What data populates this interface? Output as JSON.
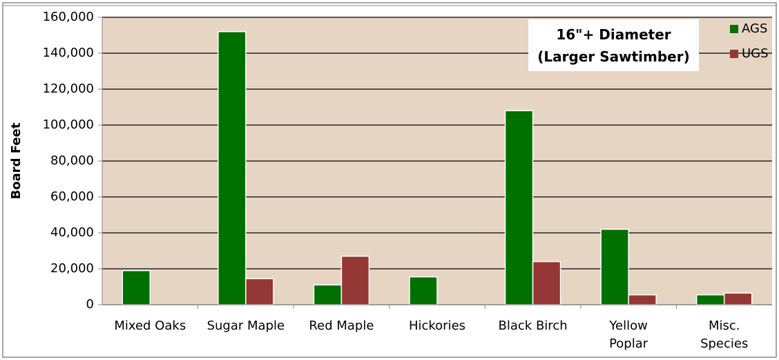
{
  "chart_data": {
    "type": "bar",
    "annotation": "16\"+ Diameter\n(Larger Sawtimber)",
    "y_label": "Board Feet",
    "categories": [
      "Mixed Oaks",
      "Sugar Maple",
      "Red Maple",
      "Hickories",
      "Black Birch",
      "Yellow\nPoplar",
      "Misc.\nSpecies"
    ],
    "series": [
      {
        "name": "AGS",
        "color": "#007000",
        "values": [
          19000,
          152000,
          11000,
          15500,
          108000,
          42000,
          5500
        ]
      },
      {
        "name": "UGS",
        "color": "#953735",
        "values": [
          0,
          14500,
          27000,
          0,
          24000,
          5500,
          6500
        ]
      }
    ],
    "ylim": [
      0,
      160000
    ],
    "yticks": [
      0,
      {
        "value": 20000,
        "label": "20,000"
      },
      {
        "value": 40000,
        "label": "40,000"
      },
      {
        "value": 60000,
        "label": "60,000"
      },
      {
        "value": 80000,
        "label": "80,000"
      },
      {
        "value": 100000,
        "label": "100,000"
      },
      {
        "value": 120000,
        "label": "120,000"
      },
      {
        "value": 140000,
        "label": "140,000"
      },
      {
        "value": 160000,
        "label": "160,000"
      }
    ],
    "grid": true,
    "legend": "top-right"
  }
}
